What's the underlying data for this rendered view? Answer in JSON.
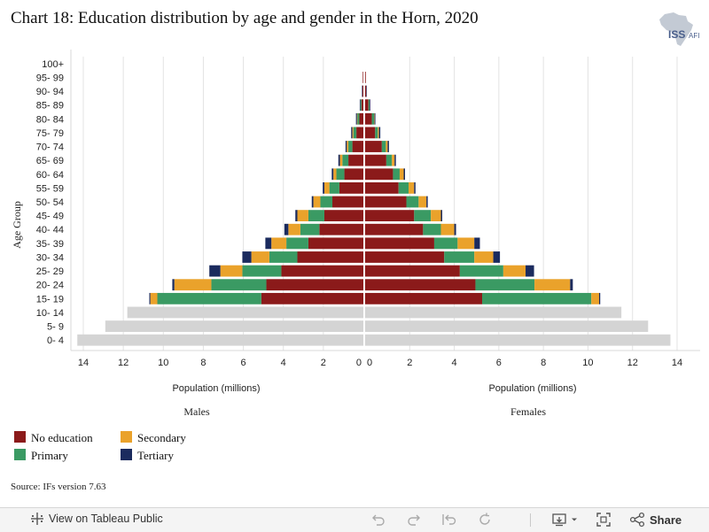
{
  "title": "Chart 18: Education distribution by age and gender in the Horn, 2020",
  "logo": {
    "text": "ISS",
    "suffix": "AFI"
  },
  "source": "Source: IFs version 7.63",
  "colors": {
    "no_education": "#8b1a1a",
    "primary": "#3a9a63",
    "secondary": "#eaa22b",
    "tertiary": "#1b2b5e",
    "young": "#d4d4d4"
  },
  "legend": [
    {
      "label": "No education",
      "color": "#8b1a1a"
    },
    {
      "label": "Secondary",
      "color": "#eaa22b"
    },
    {
      "label": "Primary",
      "color": "#3a9a63"
    },
    {
      "label": "Tertiary",
      "color": "#1b2b5e"
    }
  ],
  "toolbar": {
    "view_label": "View on Tableau Public",
    "share_label": "Share"
  },
  "chart_data": {
    "type": "bar",
    "title": "Chart 18: Education distribution by age and gender in the Horn, 2020",
    "ylabel": "Age Group",
    "xlabel_left": "Population (millions)",
    "xlabel_right": "Population (millions)",
    "panel_left": "Males",
    "panel_right": "Females",
    "xlim": [
      0,
      14
    ],
    "ticks": [
      0,
      2,
      4,
      6,
      8,
      10,
      12,
      14
    ],
    "grid": true,
    "categories": [
      "100+",
      "95- 99",
      "90- 94",
      "85- 89",
      "80- 84",
      "75- 79",
      "70- 74",
      "65- 69",
      "60- 64",
      "55- 59",
      "50- 54",
      "45- 49",
      "40- 44",
      "35- 39",
      "30- 34",
      "25- 29",
      "20- 24",
      "15- 19",
      "10- 14",
      "5- 9",
      "0- 4"
    ],
    "series_order": [
      "No education",
      "Primary",
      "Secondary",
      "Tertiary"
    ],
    "males": {
      "No education": [
        0,
        0.03,
        0.05,
        0.1,
        0.2,
        0.35,
        0.55,
        0.75,
        0.95,
        1.2,
        1.55,
        1.95,
        2.2,
        2.75,
        3.3,
        4.1,
        4.85,
        5.1,
        0,
        0,
        0
      ],
      "Primary": [
        0,
        0,
        0,
        0.05,
        0.1,
        0.15,
        0.2,
        0.3,
        0.4,
        0.5,
        0.6,
        0.8,
        0.95,
        1.1,
        1.4,
        1.95,
        2.75,
        5.2,
        0,
        0,
        0
      ],
      "Secondary": [
        0,
        0,
        0,
        0,
        0.02,
        0.05,
        0.08,
        0.12,
        0.15,
        0.25,
        0.35,
        0.55,
        0.6,
        0.75,
        0.9,
        1.1,
        1.85,
        0.35,
        0,
        0,
        0
      ],
      "Tertiary": [
        0,
        0,
        0.02,
        0.03,
        0.05,
        0.06,
        0.06,
        0.08,
        0.08,
        0.08,
        0.08,
        0.1,
        0.2,
        0.3,
        0.45,
        0.55,
        0.1,
        0.05,
        0,
        0,
        0
      ],
      "Under 15": [
        0,
        0,
        0,
        0,
        0,
        0,
        0,
        0,
        0,
        0,
        0,
        0,
        0,
        0,
        0,
        0,
        0,
        0,
        11.8,
        12.9,
        14.3
      ]
    },
    "females": {
      "No education": [
        0,
        0.03,
        0.05,
        0.15,
        0.3,
        0.45,
        0.75,
        0.95,
        1.25,
        1.5,
        1.85,
        2.2,
        2.6,
        3.1,
        3.55,
        4.25,
        4.95,
        5.25,
        0,
        0,
        0
      ],
      "Primary": [
        0,
        0,
        0,
        0.05,
        0.1,
        0.12,
        0.18,
        0.25,
        0.3,
        0.45,
        0.55,
        0.75,
        0.8,
        1.05,
        1.35,
        1.95,
        2.65,
        4.9,
        0,
        0,
        0
      ],
      "Secondary": [
        0,
        0,
        0,
        0,
        0.02,
        0.05,
        0.08,
        0.12,
        0.18,
        0.25,
        0.35,
        0.45,
        0.6,
        0.75,
        0.85,
        1.0,
        1.6,
        0.35,
        0,
        0,
        0
      ],
      "Tertiary": [
        0,
        0,
        0.02,
        0.03,
        0.04,
        0.06,
        0.06,
        0.06,
        0.06,
        0.06,
        0.06,
        0.06,
        0.08,
        0.25,
        0.3,
        0.38,
        0.12,
        0.05,
        0,
        0,
        0
      ],
      "Under 15": [
        0,
        0,
        0,
        0,
        0,
        0,
        0,
        0,
        0,
        0,
        0,
        0,
        0,
        0,
        0,
        0,
        0,
        0,
        11.5,
        12.7,
        13.7
      ]
    }
  }
}
